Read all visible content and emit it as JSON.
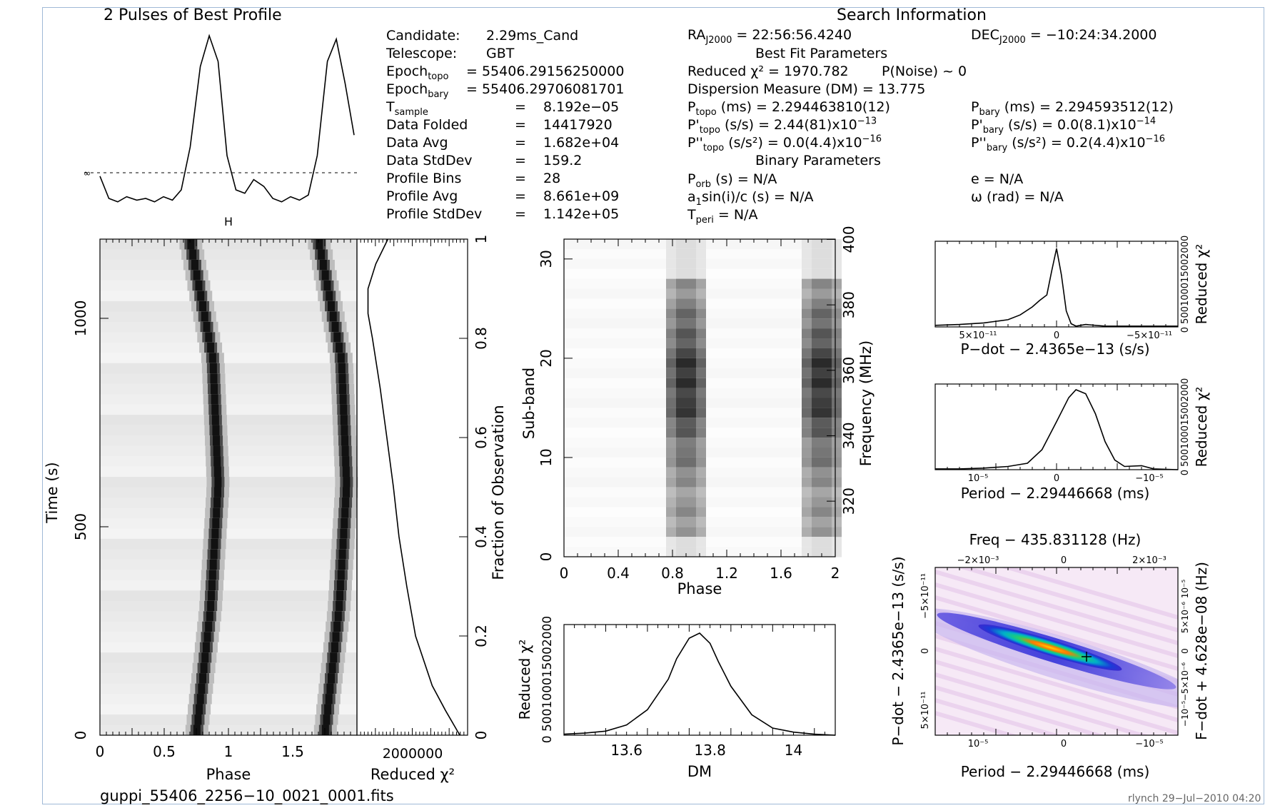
{
  "profile": {
    "title": "2 Pulses of Best Profile",
    "ticks_label": "H"
  },
  "search_info": {
    "title": "Search Information",
    "ra": "RA",
    "ra_sub": "J2000",
    "ra_val": "= 22:56:56.4240",
    "dec": "DEC",
    "dec_sub": "J2000",
    "dec_val": "= −10:24:34.2000",
    "best_fit": "Best Fit Parameters",
    "binary": "Binary Parameters"
  },
  "left_info": [
    {
      "label": "Candidate:",
      "value": "2.29ms_Cand"
    },
    {
      "label": "Telescope:",
      "value": "GBT"
    },
    {
      "label": "Epoch",
      "sub": "topo",
      "value": "= 55406.29156250000"
    },
    {
      "label": "Epoch",
      "sub": "bary",
      "value": "= 55406.29706081701"
    },
    {
      "label": "T",
      "sub": "sample",
      "eq": "=",
      "value": "8.192e−05"
    },
    {
      "label": "Data Folded",
      "eq": "=",
      "value": "14417920"
    },
    {
      "label": "Data Avg",
      "eq": "=",
      "value": "1.682e+04"
    },
    {
      "label": "Data StdDev",
      "eq": "=",
      "value": "159.2"
    },
    {
      "label": "Profile Bins",
      "eq": "=",
      "value": "28"
    },
    {
      "label": "Profile Avg",
      "eq": "=",
      "value": "8.661e+09"
    },
    {
      "label": "Profile StdDev",
      "eq": "=",
      "value": "1.142e+05"
    }
  ],
  "fit_info": {
    "reduced_chi2": "Reduced χ² = 1970.782",
    "pnoise": "P(Noise) ~ 0",
    "dm": "Dispersion Measure (DM) = 13.775",
    "ptopo": "P",
    "ptopo_sub": "topo",
    "ptopo_val": "(ms) = 2.294463810(12)",
    "pdtopo": "P'",
    "pdtopo_sub": "topo",
    "pdtopo_val": "(s/s) = 2.44(81)x10",
    "pdtopo_exp": "−13",
    "pddtopo": "P''",
    "pddtopo_sub": "topo",
    "pddtopo_val": "(s/s²) = 0.0(4.4)x10",
    "pddtopo_exp": "−16",
    "pbary": "P",
    "pbary_sub": "bary",
    "pbary_val": "(ms) = 2.294593512(12)",
    "pdbary": "P'",
    "pdbary_sub": "bary",
    "pdbary_val": "(s/s) = 0.0(8.1)x10",
    "pdbary_exp": "−14",
    "pddbary": "P''",
    "pddbary_sub": "bary",
    "pddbary_val": "(s/s²) = 0.2(4.4)x10",
    "pddbary_exp": "−16",
    "porb": "P",
    "porb_sub": "orb",
    "porb_val": "(s) = N/A",
    "asini": "a",
    "asini_sub": "1",
    "asini_val": "sin(i)/c (s) = N/A",
    "tperi": "T",
    "tperi_sub": "peri",
    "tperi_val": "= N/A",
    "ecc": "e = N/A",
    "omega": "ω (rad) = N/A"
  },
  "footer": {
    "filename": "guppi_55406_2256−10_0021_0001.fits",
    "credit": "rlynch 29−Jul−2010 04:20"
  },
  "colors": {
    "frame": "#9fb9d6",
    "ink": "#000000",
    "pulse": "#1a1a1a"
  },
  "chart_data": [
    {
      "type": "line",
      "name": "profile",
      "title": "2 Pulses of Best Profile",
      "x_phase": [
        0.0,
        0.07,
        0.14,
        0.21,
        0.29,
        0.36,
        0.43,
        0.5,
        0.57,
        0.64,
        0.71,
        0.79,
        0.86,
        0.93,
        1.0,
        1.07,
        1.14,
        1.21,
        1.29,
        1.36,
        1.43,
        1.5,
        1.57,
        1.64,
        1.71,
        1.79,
        1.86,
        1.93,
        2.0
      ],
      "y": [
        0.18,
        0.05,
        0.03,
        0.06,
        0.04,
        0.05,
        0.03,
        0.06,
        0.04,
        0.1,
        0.35,
        0.82,
        1.0,
        0.85,
        0.3,
        0.1,
        0.08,
        0.16,
        0.12,
        0.05,
        0.03,
        0.06,
        0.04,
        0.07,
        0.3,
        0.85,
        0.98,
        0.72,
        0.42
      ]
    },
    {
      "type": "heatmap",
      "name": "time-phase",
      "xlabel": "Phase",
      "ylabel": "Time (s)",
      "right_label": "Fraction of Observation",
      "x_ticks": [
        "0",
        "0.5",
        "1",
        "1.5"
      ],
      "y_ticks": [
        "0",
        "500",
        "1000"
      ],
      "right_ticks": [
        "0",
        "0.2",
        "0.4",
        "0.6",
        "0.8",
        "1"
      ],
      "xlim": [
        0,
        2
      ],
      "ylim": [
        0,
        1190
      ],
      "pulse_phase_at_time": {
        "t": [
          0,
          300,
          600,
          900,
          1190
        ],
        "phase": [
          0.75,
          0.86,
          0.92,
          0.88,
          0.7
        ]
      }
    },
    {
      "type": "line",
      "name": "time-chi2",
      "xlabel": "Reduced χ²",
      "x_tick_text": "2000000",
      "y_frac": [
        0,
        0.05,
        0.1,
        0.2,
        0.3,
        0.4,
        0.5,
        0.6,
        0.7,
        0.8,
        0.85,
        0.9,
        0.95,
        1.0
      ],
      "x_frac": [
        0.93,
        0.8,
        0.68,
        0.53,
        0.45,
        0.38,
        0.33,
        0.27,
        0.21,
        0.14,
        0.1,
        0.1,
        0.17,
        0.28
      ]
    },
    {
      "type": "heatmap",
      "name": "subband-phase",
      "xlabel": "Phase",
      "ylabel": "Sub-band",
      "right_label": "Frequency (MHz)",
      "x_ticks": [
        "0",
        "0.4",
        "0.8",
        "1.2",
        "1.6",
        "2"
      ],
      "y_ticks": [
        "0",
        "10",
        "20",
        "30"
      ],
      "right_ticks": [
        "320",
        "340",
        "360",
        "380",
        "400"
      ],
      "xlim": [
        0,
        2
      ],
      "ylim": [
        0,
        32
      ]
    },
    {
      "type": "line",
      "name": "dm-chi2",
      "xlabel": "DM",
      "ylabel": "Reduced χ²",
      "y_tick_text": "0 500100015002000",
      "x_ticks": [
        "13.6",
        "13.8",
        "14"
      ],
      "xlim": [
        13.45,
        14.1
      ],
      "x": [
        13.45,
        13.5,
        13.55,
        13.6,
        13.65,
        13.7,
        13.72,
        13.75,
        13.775,
        13.8,
        13.82,
        13.85,
        13.9,
        13.95,
        14.0,
        14.05,
        14.1
      ],
      "y": [
        0.01,
        0.02,
        0.04,
        0.1,
        0.25,
        0.55,
        0.75,
        0.95,
        1.0,
        0.9,
        0.72,
        0.48,
        0.2,
        0.07,
        0.03,
        0.01,
        0.0
      ]
    },
    {
      "type": "line",
      "name": "pdot-chi2",
      "xlabel": "P−dot − 2.4365e−13 (s/s)",
      "ylabel": "Reduced χ²",
      "x_ticks": [
        "5×10⁻¹¹",
        "0",
        "−5×10⁻¹¹"
      ],
      "y_tick_text": "0 500100015002000",
      "x_frac": [
        0,
        0.1,
        0.2,
        0.3,
        0.35,
        0.4,
        0.43,
        0.46,
        0.48,
        0.5,
        0.52,
        0.54,
        0.56,
        0.58,
        0.62,
        0.7,
        0.8,
        0.9,
        1.0
      ],
      "y_frac": [
        0.02,
        0.03,
        0.05,
        0.09,
        0.15,
        0.25,
        0.33,
        0.4,
        0.7,
        0.98,
        0.65,
        0.2,
        0.04,
        0.01,
        0.03,
        0.01,
        0.01,
        0.01,
        0.01
      ]
    },
    {
      "type": "line",
      "name": "period-chi2",
      "xlabel": "Period − 2.29446668 (ms)",
      "ylabel": "Reduced χ²",
      "x_ticks": [
        "10⁻⁵",
        "0",
        "−10⁻⁵"
      ],
      "y_tick_text": "0 500100015002000",
      "x_frac": [
        0,
        0.1,
        0.2,
        0.3,
        0.38,
        0.44,
        0.5,
        0.55,
        0.58,
        0.62,
        0.66,
        0.7,
        0.74,
        0.78,
        0.85,
        0.9,
        1.0
      ],
      "y_frac": [
        0.01,
        0.01,
        0.02,
        0.04,
        0.08,
        0.25,
        0.6,
        0.9,
        1.0,
        0.95,
        0.7,
        0.35,
        0.12,
        0.04,
        0.05,
        0.01,
        0.0
      ]
    },
    {
      "type": "heatmap",
      "name": "period-pdot",
      "title": "Freq − 435.831128 (Hz)",
      "xlabel": "Period − 2.29446668 (ms)",
      "ylabel": "P−dot − 2.4365e−13 (s/s)",
      "right_label": "F−dot + 4.628e−08 (Hz)",
      "x_ticks": [
        "10⁻⁵",
        "0",
        "−10⁻⁵"
      ],
      "top_ticks": [
        "−2×10⁻³",
        "0",
        "2×10⁻³"
      ],
      "y_ticks": [
        "−5×10⁻¹¹",
        "0",
        "5×10⁻¹¹"
      ],
      "right_ticks": [
        "10⁻⁵",
        "5×10⁻⁶",
        "0",
        "−5×10⁻⁶",
        "−10⁻⁵"
      ]
    }
  ]
}
